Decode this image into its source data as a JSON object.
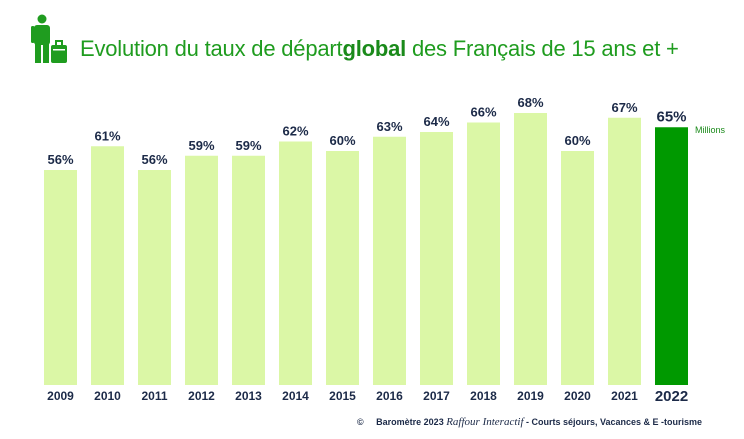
{
  "header": {
    "title_part1": "Evolution du taux de départ",
    "title_bold": "global",
    "title_part2": " des Français de 15 ans et +",
    "icon": "traveler-with-suitcase-icon"
  },
  "unit_label": "Millions",
  "footer": {
    "copyright": "©",
    "source_part1": "Baromètre 2023 ",
    "brand": "Raffour Interactif",
    "source_part2": " - Courts séjours, Vacances & E -tourisme"
  },
  "colors": {
    "bar": "#dbf7a6",
    "highlight_bar": "#009900",
    "title": "#1f9c1f",
    "label": "#1c2a48"
  },
  "chart_data": {
    "type": "bar",
    "title": "Evolution du taux de départ global des Français de 15 ans et +",
    "xlabel": "",
    "ylabel": "",
    "ylim": [
      0,
      100
    ],
    "grid": false,
    "categories": [
      "2009",
      "2010",
      "2011",
      "2012",
      "2013",
      "2014",
      "2015",
      "2016",
      "2017",
      "2018",
      "2019",
      "2020",
      "2021",
      "2022"
    ],
    "values": [
      56,
      61,
      56,
      59,
      59,
      62,
      60,
      63,
      64,
      66,
      68,
      60,
      67,
      65
    ],
    "value_labels": [
      "56%",
      "61%",
      "56%",
      "59%",
      "59%",
      "62%",
      "60%",
      "63%",
      "64%",
      "66%",
      "68%",
      "60%",
      "67%",
      "65%"
    ],
    "highlight_category": "2022"
  }
}
